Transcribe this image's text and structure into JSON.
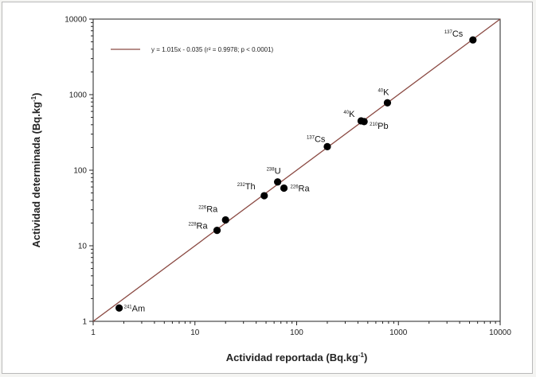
{
  "chart_data": {
    "type": "scatter",
    "scale": "log-log",
    "xlabel": "Actividad reportada (Bq.kg",
    "xlabel_sup": "-1",
    "xlabel_end": ")",
    "ylabel": "Actividad determinada (Bq.kg",
    "ylabel_sup": "-1",
    "ylabel_end": ")",
    "xlim": [
      1,
      10000
    ],
    "ylim": [
      1,
      10000
    ],
    "x_ticks": [
      1,
      10,
      100,
      1000,
      10000
    ],
    "x_tick_labels": [
      "1",
      "10",
      "100",
      "1000",
      "10000"
    ],
    "y_ticks": [
      1,
      10,
      100,
      1000,
      10000
    ],
    "y_tick_labels": [
      "1",
      "10",
      "100",
      "1000",
      "10000"
    ],
    "grid": false,
    "legend_position": "top-left",
    "legend_entry": "y = 1.015x - 0.035  (r² = 0.9978; p < 0.0001)",
    "line_color": "#8b4a43",
    "marker_color": "#000000",
    "fit_line": {
      "slope": 1.015,
      "intercept": -0.035,
      "x": [
        1,
        10000
      ]
    },
    "points": [
      {
        "x": 1.8,
        "y": 1.5,
        "label": "Am",
        "sup": "241"
      },
      {
        "x": 16.5,
        "y": 16,
        "label": "Ra",
        "sup": "228"
      },
      {
        "x": 20,
        "y": 22,
        "label": "Ra",
        "sup": "226"
      },
      {
        "x": 48,
        "y": 46,
        "label": "Th",
        "sup": "232"
      },
      {
        "x": 65,
        "y": 70,
        "label": "U",
        "sup": "238"
      },
      {
        "x": 75,
        "y": 58,
        "label": "Ra",
        "sup": "226"
      },
      {
        "x": 200,
        "y": 205,
        "label": "Cs",
        "sup": "137"
      },
      {
        "x": 430,
        "y": 450,
        "label": "K",
        "sup": "40"
      },
      {
        "x": 460,
        "y": 440,
        "label": "Pb",
        "sup": "210"
      },
      {
        "x": 780,
        "y": 780,
        "label": "K",
        "sup": "40"
      },
      {
        "x": 5400,
        "y": 5300,
        "label": "Cs",
        "sup": "137"
      }
    ]
  }
}
